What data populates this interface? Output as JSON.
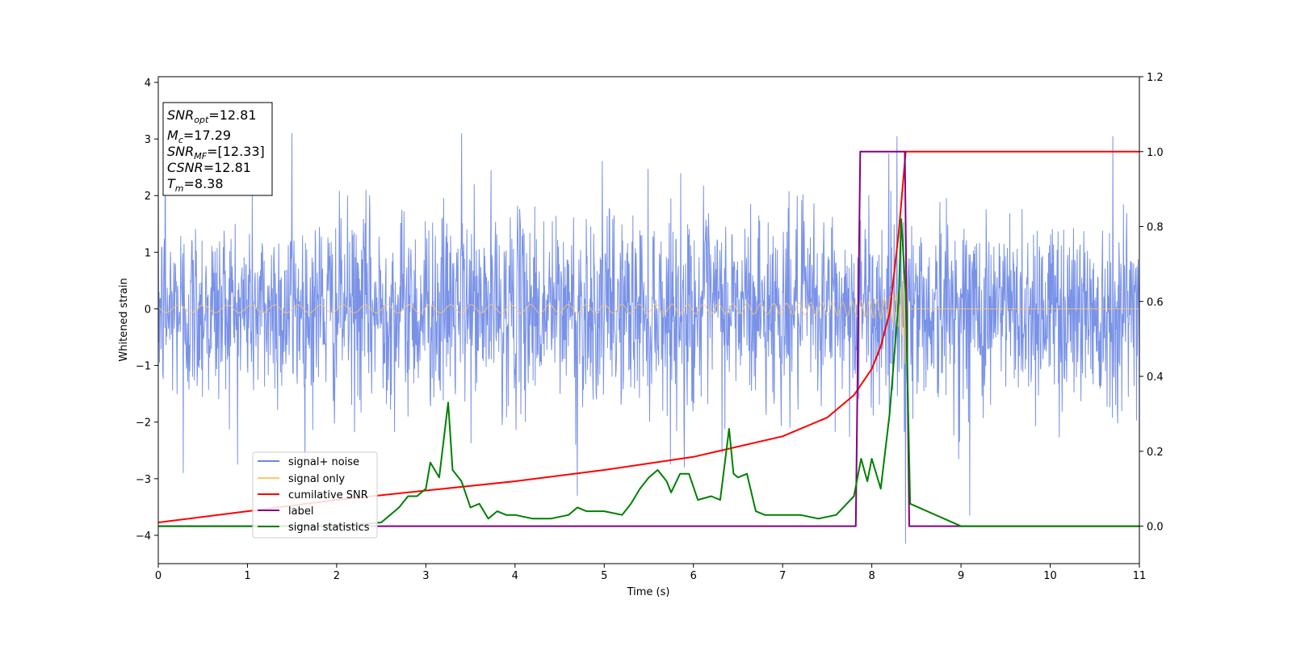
{
  "chart_data": {
    "type": "line",
    "title": "",
    "xlabel": "Time (s)",
    "ylabel": "Whitened strain",
    "xlim": [
      0,
      11
    ],
    "ylim": [
      -4.5,
      4.1
    ],
    "y2lim": [
      -0.1,
      1.2
    ],
    "xticks": [
      "0",
      "1",
      "2",
      "3",
      "4",
      "5",
      "6",
      "7",
      "8",
      "9",
      "10",
      "11"
    ],
    "yticks": [
      "4",
      "3",
      "2",
      "1",
      "0",
      "−1",
      "−2",
      "−3",
      "−4"
    ],
    "y2ticks": [
      "1.2",
      "1.0",
      "0.8",
      "0.6",
      "0.4",
      "0.2",
      "0.0"
    ],
    "grid": false,
    "legend_position": "lower-left",
    "info_box": {
      "snr_opt_base": "SNR",
      "snr_opt_sub": "opt",
      "snr_opt_value": "=12.81",
      "mc_base": "M",
      "mc_sub": "c",
      "mc_value": "=17.29",
      "snr_mf_base": "SNR",
      "snr_mf_sub": "MF",
      "snr_mf_value": "=[12.33]",
      "csnr_base": "CSNR",
      "csnr_value": "=12.81",
      "tm_base": "T",
      "tm_sub": "m",
      "tm_value": "=8.38"
    },
    "series": [
      {
        "name": "signal+ noise",
        "axis": "left",
        "color": "#6a86e6",
        "kind": "noise",
        "std": 0.85,
        "extremes": [
          [
            0.08,
            3.65
          ],
          [
            1.5,
            3.1
          ],
          [
            3.4,
            3.1
          ],
          [
            8.28,
            3.05
          ],
          [
            10.7,
            3.05
          ],
          [
            0.28,
            -2.9
          ],
          [
            4.7,
            -3.3
          ],
          [
            8.38,
            -4.15
          ],
          [
            9.1,
            -3.65
          ],
          [
            5.9,
            -2.8
          ]
        ]
      },
      {
        "name": "signal only",
        "axis": "left",
        "color": "#ffc766",
        "kind": "chirp",
        "t_merger": 8.38,
        "peak_amplitude": 1.8,
        "base_amplitude": 0.05
      },
      {
        "name": "cumilative SNR",
        "axis": "right",
        "color": "#ff0000",
        "x": [
          0,
          1,
          2,
          3,
          4,
          5,
          6,
          7,
          7.5,
          7.8,
          8.0,
          8.1,
          8.2,
          8.3,
          8.38,
          8.39,
          11
        ],
        "y": [
          0.01,
          0.04,
          0.07,
          0.095,
          0.12,
          0.15,
          0.185,
          0.24,
          0.29,
          0.35,
          0.42,
          0.48,
          0.57,
          0.78,
          1.0,
          1.0,
          1.0
        ]
      },
      {
        "name": "label",
        "axis": "right",
        "color": "#800080",
        "x": [
          0,
          7.82,
          7.87,
          8.37,
          8.42,
          11
        ],
        "y": [
          0,
          0,
          1.0,
          1.0,
          0,
          0
        ]
      },
      {
        "name": "signal statistics",
        "axis": "right",
        "color": "#008000",
        "x": [
          0,
          0.5,
          1.0,
          1.5,
          2.0,
          2.5,
          2.6,
          2.7,
          2.8,
          2.9,
          3.0,
          3.05,
          3.15,
          3.25,
          3.3,
          3.4,
          3.5,
          3.6,
          3.7,
          3.8,
          3.9,
          4.0,
          4.2,
          4.4,
          4.6,
          4.7,
          4.8,
          5.0,
          5.2,
          5.3,
          5.4,
          5.5,
          5.6,
          5.7,
          5.75,
          5.85,
          5.95,
          6.05,
          6.2,
          6.3,
          6.4,
          6.45,
          6.5,
          6.6,
          6.7,
          6.8,
          6.9,
          7.0,
          7.2,
          7.4,
          7.6,
          7.8,
          7.88,
          7.95,
          8.0,
          8.1,
          8.2,
          8.3,
          8.33,
          8.38,
          8.43,
          9,
          10,
          11
        ],
        "y": [
          0,
          0,
          0,
          0,
          0,
          0.01,
          0.03,
          0.05,
          0.08,
          0.08,
          0.1,
          0.17,
          0.13,
          0.33,
          0.15,
          0.12,
          0.05,
          0.06,
          0.02,
          0.04,
          0.03,
          0.03,
          0.02,
          0.02,
          0.03,
          0.05,
          0.04,
          0.04,
          0.03,
          0.06,
          0.1,
          0.13,
          0.15,
          0.12,
          0.09,
          0.14,
          0.14,
          0.07,
          0.08,
          0.07,
          0.26,
          0.14,
          0.13,
          0.14,
          0.04,
          0.03,
          0.03,
          0.03,
          0.03,
          0.02,
          0.03,
          0.08,
          0.18,
          0.12,
          0.18,
          0.1,
          0.3,
          0.6,
          0.82,
          0.62,
          0.06,
          0,
          0,
          0
        ]
      }
    ]
  }
}
